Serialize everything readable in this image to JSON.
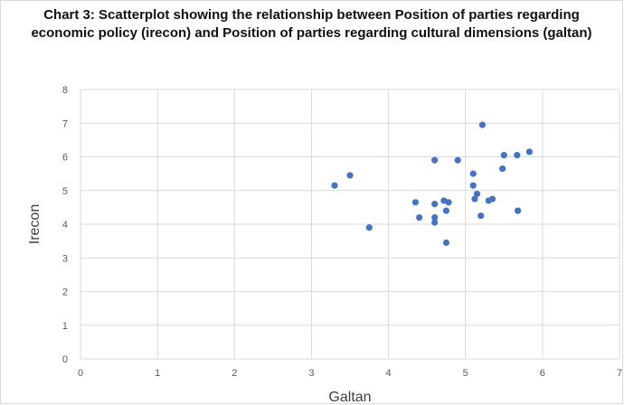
{
  "chart_data": {
    "type": "scatter",
    "title": "Chart 3: Scatterplot showing the relationship between Position of parties regarding economic policy (irecon) and Position of parties regarding cultural dimensions (galtan)",
    "xlabel": "Galtan",
    "ylabel": "Irecon",
    "xlim": [
      0,
      7
    ],
    "ylim": [
      0,
      8
    ],
    "x_ticks": [
      "0",
      "1",
      "2",
      "3",
      "4",
      "5",
      "6",
      "7"
    ],
    "y_ticks": [
      "0",
      "1",
      "2",
      "3",
      "4",
      "5",
      "6",
      "7",
      "8"
    ],
    "grid": true,
    "legend": "none",
    "marker_color": "#4472c4",
    "gridline_color": "#d9d9d9",
    "points": [
      {
        "x": 3.3,
        "y": 5.15
      },
      {
        "x": 3.5,
        "y": 5.45
      },
      {
        "x": 3.75,
        "y": 3.9
      },
      {
        "x": 4.35,
        "y": 4.65
      },
      {
        "x": 4.4,
        "y": 4.2
      },
      {
        "x": 4.6,
        "y": 5.9
      },
      {
        "x": 4.6,
        "y": 4.6
      },
      {
        "x": 4.6,
        "y": 4.2
      },
      {
        "x": 4.6,
        "y": 4.05
      },
      {
        "x": 4.72,
        "y": 4.7
      },
      {
        "x": 4.78,
        "y": 4.65
      },
      {
        "x": 4.75,
        "y": 4.4
      },
      {
        "x": 4.75,
        "y": 3.45
      },
      {
        "x": 4.9,
        "y": 5.9
      },
      {
        "x": 5.1,
        "y": 5.5
      },
      {
        "x": 5.1,
        "y": 5.15
      },
      {
        "x": 5.15,
        "y": 4.9
      },
      {
        "x": 5.12,
        "y": 4.75
      },
      {
        "x": 5.2,
        "y": 4.25
      },
      {
        "x": 5.22,
        "y": 6.95
      },
      {
        "x": 5.3,
        "y": 4.7
      },
      {
        "x": 5.35,
        "y": 4.75
      },
      {
        "x": 5.48,
        "y": 5.65
      },
      {
        "x": 5.5,
        "y": 6.05
      },
      {
        "x": 5.67,
        "y": 6.05
      },
      {
        "x": 5.68,
        "y": 4.4
      },
      {
        "x": 5.83,
        "y": 6.15
      }
    ]
  }
}
